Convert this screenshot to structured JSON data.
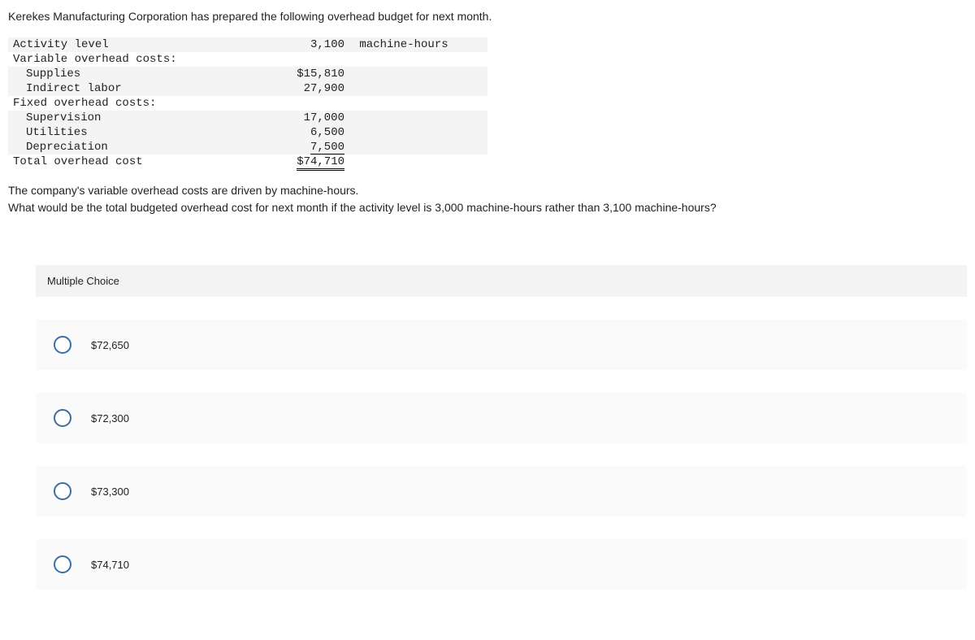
{
  "intro": "Kerekes Manufacturing Corporation has prepared the following overhead budget for next month.",
  "table": {
    "activity_label": "Activity level",
    "activity_value": "3,100",
    "activity_unit": " machine-hours",
    "var_header": "Variable overhead costs:",
    "supplies_label": "Supplies",
    "supplies_value": "$15,810",
    "indirect_label": "Indirect labor",
    "indirect_value": "27,900",
    "fixed_header": "Fixed overhead costs:",
    "supervision_label": "Supervision",
    "supervision_value": "17,000",
    "utilities_label": "Utilities",
    "utilities_value": "6,500",
    "depreciation_label": "Depreciation",
    "depreciation_value": "7,500",
    "total_label": "Total overhead cost",
    "total_value": "$74,710"
  },
  "followup_line1": "The company's variable overhead costs are driven by machine-hours.",
  "followup_line2": "What would be the total budgeted overhead cost for next month if the activity level is 3,000 machine-hours rather than 3,100 machine-hours?",
  "mc": {
    "title": "Multiple Choice",
    "options": [
      "$72,650",
      "$72,300",
      "$73,300",
      "$74,710"
    ]
  },
  "colors": {
    "row_shade": "#f4f4f4",
    "option_bg": "#fafafa",
    "radio_border": "#3a6ea5",
    "text": "#222222"
  }
}
